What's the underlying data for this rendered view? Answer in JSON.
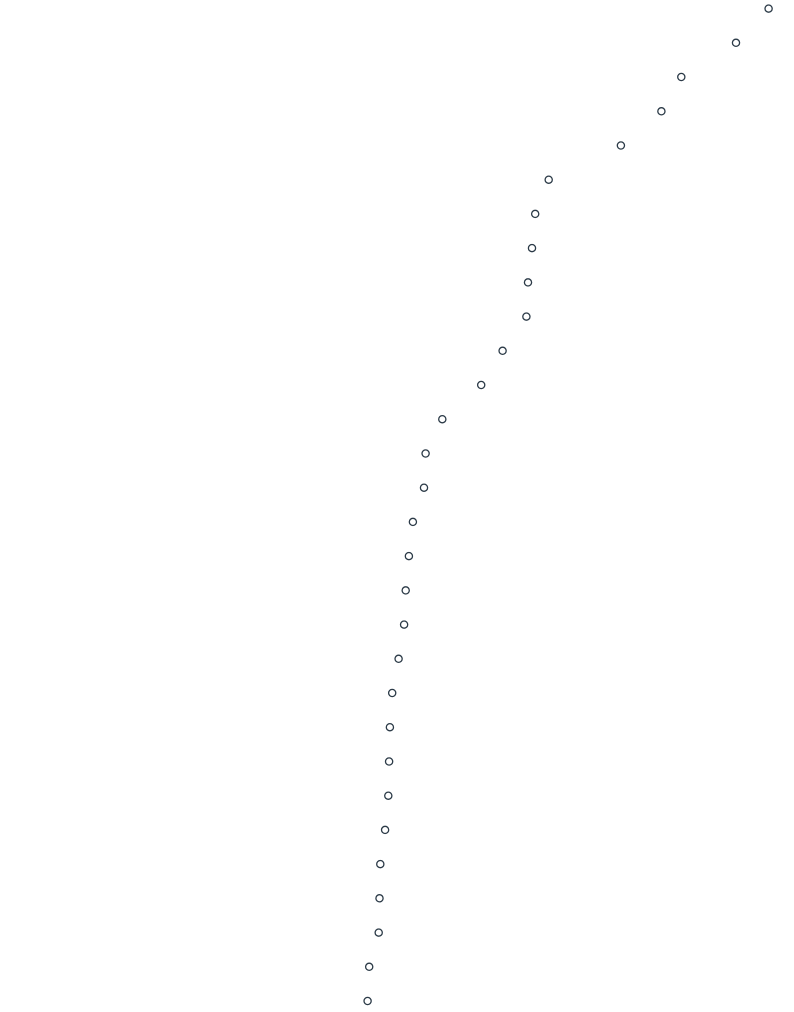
{
  "page": {
    "background": "#ffffff"
  },
  "chart_data": {
    "type": "scatter",
    "marker": "hollow-circle",
    "marker_color": "#2b3a47",
    "title": "",
    "xlabel": "",
    "ylabel": "",
    "axes_visible": false,
    "grid": false,
    "legend": "none",
    "xlim": [
      0,
      1
    ],
    "ylim": [
      0,
      30
    ],
    "series": [
      {
        "points": [
          {
            "x": 0.968,
            "y": 29
          },
          {
            "x": 0.927,
            "y": 28
          },
          {
            "x": 0.858,
            "y": 27
          },
          {
            "x": 0.833,
            "y": 26
          },
          {
            "x": 0.782,
            "y": 25
          },
          {
            "x": 0.691,
            "y": 24
          },
          {
            "x": 0.674,
            "y": 23
          },
          {
            "x": 0.67,
            "y": 22
          },
          {
            "x": 0.665,
            "y": 21
          },
          {
            "x": 0.663,
            "y": 20
          },
          {
            "x": 0.633,
            "y": 19
          },
          {
            "x": 0.606,
            "y": 18
          },
          {
            "x": 0.557,
            "y": 17
          },
          {
            "x": 0.536,
            "y": 16
          },
          {
            "x": 0.534,
            "y": 15
          },
          {
            "x": 0.52,
            "y": 14
          },
          {
            "x": 0.515,
            "y": 13
          },
          {
            "x": 0.511,
            "y": 12
          },
          {
            "x": 0.509,
            "y": 11
          },
          {
            "x": 0.502,
            "y": 10
          },
          {
            "x": 0.494,
            "y": 9
          },
          {
            "x": 0.491,
            "y": 8
          },
          {
            "x": 0.49,
            "y": 7
          },
          {
            "x": 0.489,
            "y": 6
          },
          {
            "x": 0.485,
            "y": 5
          },
          {
            "x": 0.479,
            "y": 4
          },
          {
            "x": 0.478,
            "y": 3
          },
          {
            "x": 0.477,
            "y": 2
          },
          {
            "x": 0.465,
            "y": 1
          },
          {
            "x": 0.463,
            "y": 0
          }
        ]
      }
    ]
  }
}
